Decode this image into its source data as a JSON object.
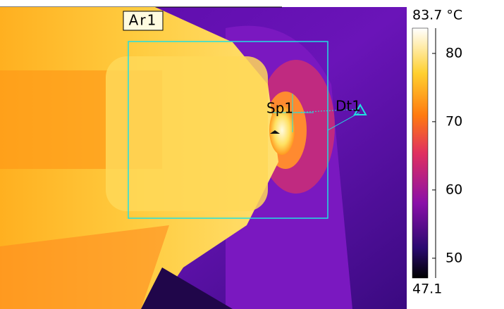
{
  "image": {
    "labels": {
      "area": "Ar1",
      "spot": "Sp1",
      "delta": "Dt1"
    }
  },
  "colorbar": {
    "max_label": "83.7 °C",
    "min_label": "47.1",
    "lim": [
      47.1,
      83.7
    ],
    "ticks": [
      50,
      60,
      70,
      80
    ]
  }
}
